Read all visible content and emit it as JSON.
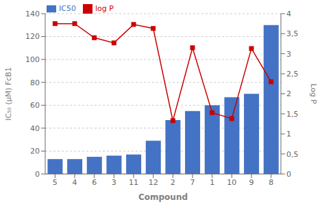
{
  "chart_data": {
    "type": "bar",
    "xlabel": "Compound",
    "ylabel": "IC₅₀ (μM) FcB1",
    "y2label": "Log P",
    "categories": [
      "5",
      "4",
      "6",
      "3",
      "11",
      "12",
      "2",
      "7",
      "1",
      "10",
      "9",
      "8"
    ],
    "series": [
      {
        "name": "IC50",
        "type": "bar",
        "color": "#4472C4",
        "values": [
          13,
          13,
          15,
          16,
          17,
          29,
          47,
          55,
          60,
          67,
          70,
          130
        ]
      },
      {
        "name": "log P",
        "type": "line",
        "axis": "y2",
        "color": "#CC0000",
        "marker": "square",
        "values": [
          3.75,
          3.75,
          3.4,
          3.27,
          3.73,
          3.63,
          1.33,
          3.15,
          1.53,
          1.38,
          3.13,
          2.3
        ]
      }
    ],
    "ylim": [
      0,
      140
    ],
    "yticks": [
      0,
      20,
      40,
      60,
      80,
      100,
      120,
      140
    ],
    "y2lim": [
      0,
      4
    ],
    "y2ticks": [
      0,
      {
        "value": 0.5,
        "label": "0,5"
      },
      1,
      {
        "value": 1.5,
        "label": "1,5"
      },
      2,
      {
        "value": 2.5,
        "label": "2,5"
      },
      3,
      {
        "value": 3.5,
        "label": "3,5"
      },
      4
    ],
    "grid": true,
    "legend": "upper left"
  }
}
